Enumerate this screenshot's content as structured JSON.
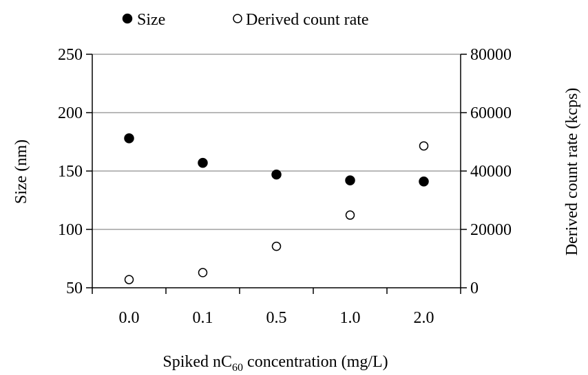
{
  "chart_data": {
    "type": "scatter",
    "categories": [
      "0.0",
      "0.1",
      "0.5",
      "1.0",
      "2.0"
    ],
    "series": [
      {
        "name": "Size",
        "axis": "left",
        "marker": "filled-circle",
        "values": [
          178,
          157,
          147,
          142,
          141
        ]
      },
      {
        "name": "Derived count rate",
        "axis": "right",
        "marker": "open-circle",
        "values": [
          2800,
          5200,
          14200,
          24900,
          48600
        ]
      }
    ],
    "xlabel": {
      "prefix": "Spiked nC",
      "subscript": "60",
      "suffix": " concentration (mg/L)"
    },
    "ylabel_left": "Size (nm)",
    "ylabel_right": "Derived count rate (kcps)",
    "ylim_left": [
      50,
      250
    ],
    "yticks_left": [
      "50",
      "100",
      "150",
      "200",
      "250"
    ],
    "ylim_right": [
      0,
      80000
    ],
    "yticks_right": [
      "0",
      "20000",
      "40000",
      "60000",
      "80000"
    ],
    "grid": "horizontal",
    "legend_position": "top",
    "colors": {
      "marker": "#000000",
      "grid": "#a0a0a0",
      "axis": "#000000"
    }
  }
}
